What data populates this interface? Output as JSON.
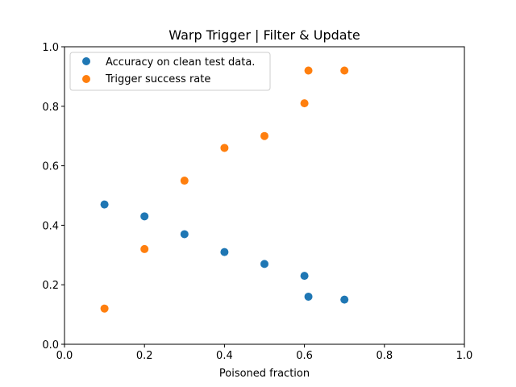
{
  "chart_data": {
    "type": "scatter",
    "title": "Warp Trigger | Filter & Update",
    "xlabel": "Poisoned fraction",
    "ylabel": "",
    "xlim": [
      0.0,
      1.0
    ],
    "ylim": [
      0.0,
      1.0
    ],
    "xticks": [
      0.0,
      0.2,
      0.4,
      0.6,
      0.8,
      1.0
    ],
    "yticks": [
      0.0,
      0.2,
      0.4,
      0.6,
      0.8,
      1.0
    ],
    "xtick_labels": [
      "0.0",
      "0.2",
      "0.4",
      "0.6",
      "0.8",
      "1.0"
    ],
    "ytick_labels": [
      "0.0",
      "0.2",
      "0.4",
      "0.6",
      "0.8",
      "1.0"
    ],
    "grid": false,
    "legend_position": "upper-left",
    "series": [
      {
        "name": "Accuracy on clean test data.",
        "color": "#1f77b4",
        "x": [
          0.1,
          0.2,
          0.3,
          0.4,
          0.5,
          0.6,
          0.61,
          0.7
        ],
        "y": [
          0.47,
          0.43,
          0.37,
          0.31,
          0.27,
          0.23,
          0.16,
          0.15
        ]
      },
      {
        "name": "Trigger success rate",
        "color": "#ff7f0e",
        "x": [
          0.1,
          0.2,
          0.3,
          0.4,
          0.5,
          0.6,
          0.61,
          0.7
        ],
        "y": [
          0.12,
          0.32,
          0.55,
          0.66,
          0.7,
          0.81,
          0.92,
          0.92
        ]
      }
    ]
  }
}
